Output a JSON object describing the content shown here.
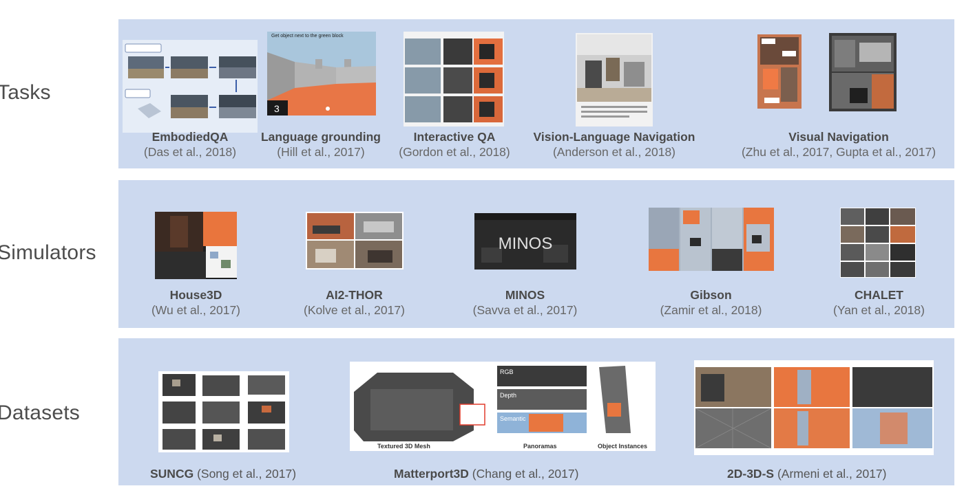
{
  "rows": {
    "tasks_label": "Tasks",
    "simulators_label": "Simulators",
    "datasets_label": "Datasets"
  },
  "tasks": [
    {
      "title": "EmbodiedQA",
      "cite": "(Das et al., 2018)"
    },
    {
      "title": "Language grounding",
      "cite": "(Hill et al., 2017)"
    },
    {
      "title": "Interactive QA",
      "cite": "(Gordon et al., 2018)"
    },
    {
      "title": "Vision-Language Navigation",
      "cite": "(Anderson et al., 2018)"
    },
    {
      "title": "Visual Navigation",
      "cite": "(Zhu et al., 2017, Gupta et al., 2017)"
    }
  ],
  "simulators": [
    {
      "title": "House3D",
      "cite": "(Wu et al., 2017)"
    },
    {
      "title": "AI2-THOR",
      "cite": "(Kolve et al., 2017)"
    },
    {
      "title": "MINOS",
      "cite": "(Savva et al., 2017)"
    },
    {
      "title": "Gibson",
      "cite": "(Zamir et al., 2018)"
    },
    {
      "title": "CHALET",
      "cite": "(Yan et al., 2018)"
    }
  ],
  "datasets": [
    {
      "title": "SUNCG",
      "cite": "(Song et al., 2017)"
    },
    {
      "title": "Matterport3D",
      "cite": "(Chang et al., 2017)"
    },
    {
      "title": "2D-3D-S",
      "cite": "(Armeni et al., 2017)"
    }
  ],
  "thumb_text": {
    "lang_instruction": "Get object next to the green block",
    "lang_score": "3",
    "minos_label": "MINOS",
    "mp_textured": "Textured 3D Mesh",
    "mp_panoramas": "Panoramas",
    "mp_objects": "Object Instances",
    "mp_rgb": "RGB",
    "mp_depth": "Depth",
    "mp_semantic": "Semantic"
  },
  "colors": {
    "panel": "#ccd9ef",
    "accent_orange": "#e8763f",
    "dark_scene": "#2b2b2b"
  }
}
